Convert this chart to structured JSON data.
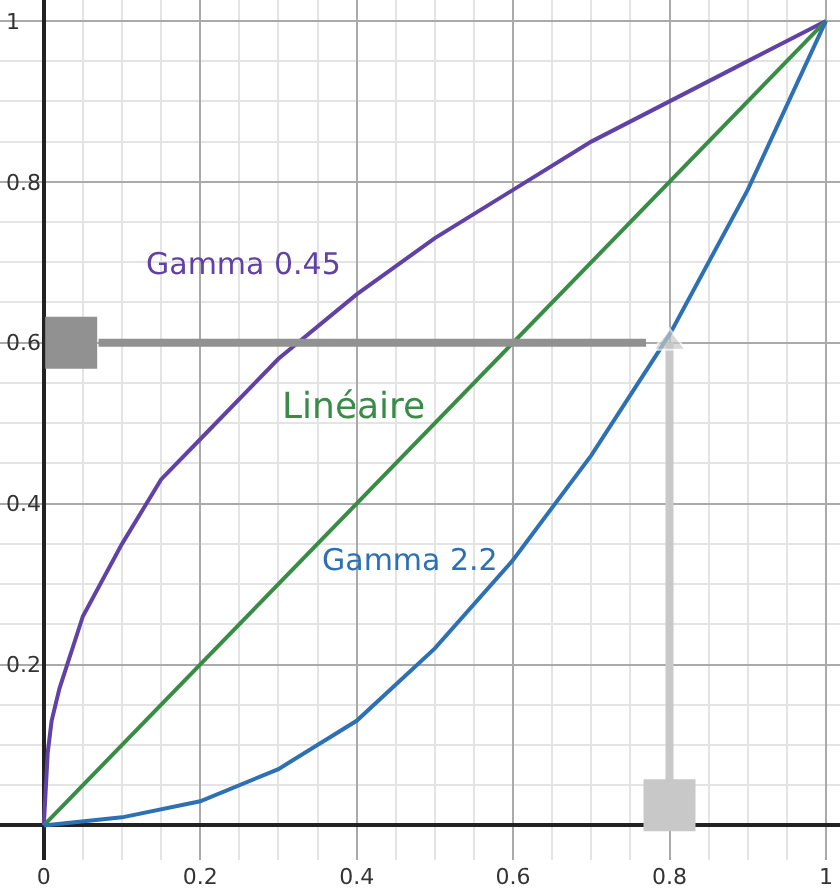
{
  "chart_data": {
    "type": "line",
    "xlim": [
      -0.056,
      1.018
    ],
    "ylim": [
      -0.043,
      1.026
    ],
    "xticks": [
      {
        "value": 0,
        "label": "0"
      },
      0.2,
      0.4,
      0.6,
      0.8,
      1
    ],
    "yticks": [
      0.2,
      0.4,
      0.6,
      0.8,
      1
    ],
    "grid": true,
    "series": [
      {
        "name": "Gamma 0.45",
        "color": "#6042a6",
        "x": [
          0,
          0.005,
          0.01,
          0.02,
          0.05,
          0.1,
          0.15,
          0.2,
          0.3,
          0.4,
          0.5,
          0.6,
          0.7,
          0.8,
          0.9,
          1
        ],
        "values": [
          0,
          0.09,
          0.13,
          0.17,
          0.26,
          0.35,
          0.43,
          0.48,
          0.58,
          0.66,
          0.73,
          0.79,
          0.85,
          0.9,
          0.95,
          1
        ]
      },
      {
        "name": "Linéaire",
        "color": "#388c46",
        "x": [
          0,
          1
        ],
        "values": [
          0,
          1
        ]
      },
      {
        "name": "Gamma 2.2",
        "color": "#2d70b3",
        "x": [
          0,
          0.1,
          0.2,
          0.3,
          0.4,
          0.5,
          0.6,
          0.7,
          0.8,
          0.9,
          1
        ],
        "values": [
          0,
          0.01,
          0.03,
          0.07,
          0.13,
          0.22,
          0.33,
          0.46,
          0.61,
          0.79,
          1
        ]
      },
      {
        "color": "#919191",
        "x": [
          0.07,
          0.77
        ],
        "values": [
          0.6,
          0.6
        ]
      },
      {
        "type": "scatter",
        "marker": "square",
        "color": "#919191",
        "x": [
          0.035
        ],
        "values": [
          0.6
        ]
      },
      {
        "color": "#c8c8c8",
        "marker": "triangle",
        "x": [
          0.8,
          0.8
        ],
        "values": [
          0.05,
          0.6
        ]
      },
      {
        "type": "scatter",
        "marker": "square",
        "color": "#c8c8c8",
        "x": [
          0.8
        ],
        "values": [
          0.025
        ]
      }
    ]
  }
}
